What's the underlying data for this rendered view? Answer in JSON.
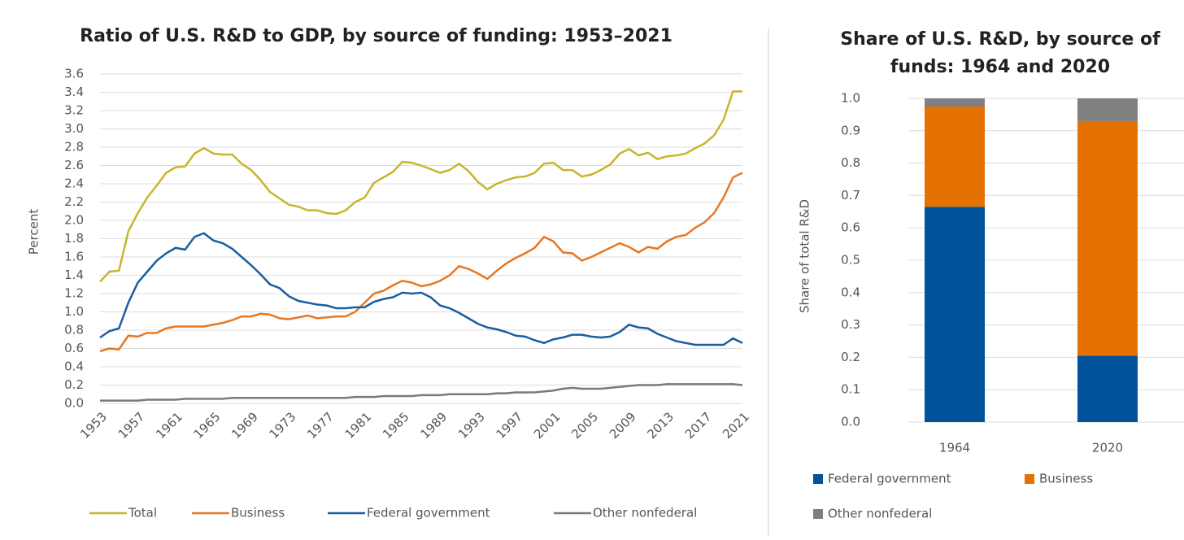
{
  "chart_data": [
    {
      "type": "line",
      "title": "Ratio of U.S. R&D to GDP, by source of funding: 1953–2021",
      "ylabel": "Percent",
      "x": [
        1953,
        1954,
        1955,
        1956,
        1957,
        1958,
        1959,
        1960,
        1961,
        1962,
        1963,
        1964,
        1965,
        1966,
        1967,
        1968,
        1969,
        1970,
        1971,
        1972,
        1973,
        1974,
        1975,
        1976,
        1977,
        1978,
        1979,
        1980,
        1981,
        1982,
        1983,
        1984,
        1985,
        1986,
        1987,
        1988,
        1989,
        1990,
        1991,
        1992,
        1993,
        1994,
        1995,
        1996,
        1997,
        1998,
        1999,
        2000,
        2001,
        2002,
        2003,
        2004,
        2005,
        2006,
        2007,
        2008,
        2009,
        2010,
        2011,
        2012,
        2013,
        2014,
        2015,
        2016,
        2017,
        2018,
        2019,
        2020,
        2021
      ],
      "xlim": [
        1953,
        2021
      ],
      "xticks": [
        1953,
        1957,
        1961,
        1965,
        1969,
        1973,
        1977,
        1981,
        1985,
        1989,
        1993,
        1997,
        2001,
        2005,
        2009,
        2013,
        2017,
        2021
      ],
      "ylim": [
        0,
        3.6
      ],
      "yticks": [
        {
          "value": 0,
          "label": "0.0"
        },
        0.2,
        0.4,
        0.6,
        0.8,
        {
          "value": 1,
          "label": "1.0"
        },
        1.2,
        1.4,
        1.6,
        1.8,
        {
          "value": 2,
          "label": "2.0"
        },
        2.2,
        2.4,
        2.6,
        2.8,
        {
          "value": 3,
          "label": "3.0"
        },
        3.2,
        3.4,
        3.6
      ],
      "grid": true,
      "series": [
        {
          "name": "Total",
          "color": "#c9b52c",
          "values": [
            1.33,
            1.44,
            1.45,
            1.88,
            2.08,
            2.25,
            2.38,
            2.52,
            2.58,
            2.59,
            2.73,
            2.79,
            2.73,
            2.72,
            2.72,
            2.62,
            2.55,
            2.44,
            2.31,
            2.24,
            2.17,
            2.15,
            2.11,
            2.11,
            2.08,
            2.07,
            2.11,
            2.2,
            2.25,
            2.41,
            2.47,
            2.53,
            2.64,
            2.63,
            2.6,
            2.56,
            2.52,
            2.55,
            2.62,
            2.54,
            2.42,
            2.34,
            2.4,
            2.44,
            2.47,
            2.48,
            2.52,
            2.62,
            2.63,
            2.55,
            2.55,
            2.48,
            2.5,
            2.55,
            2.61,
            2.73,
            2.78,
            2.71,
            2.74,
            2.67,
            2.7,
            2.71,
            2.73,
            2.79,
            2.84,
            2.93,
            3.1,
            3.41,
            3.41
          ]
        },
        {
          "name": "Business",
          "color": "#e87722",
          "values": [
            0.57,
            0.6,
            0.59,
            0.74,
            0.73,
            0.77,
            0.77,
            0.82,
            0.84,
            0.84,
            0.84,
            0.84,
            0.86,
            0.88,
            0.91,
            0.95,
            0.95,
            0.98,
            0.97,
            0.93,
            0.92,
            0.94,
            0.96,
            0.93,
            0.94,
            0.95,
            0.95,
            1.0,
            1.1,
            1.2,
            1.23,
            1.29,
            1.34,
            1.32,
            1.28,
            1.3,
            1.34,
            1.4,
            1.5,
            1.47,
            1.42,
            1.36,
            1.45,
            1.53,
            1.59,
            1.64,
            1.7,
            1.82,
            1.77,
            1.65,
            1.64,
            1.56,
            1.6,
            1.65,
            1.7,
            1.75,
            1.71,
            1.65,
            1.71,
            1.69,
            1.77,
            1.82,
            1.84,
            1.92,
            1.98,
            2.08,
            2.25,
            2.47,
            2.52
          ]
        },
        {
          "name": "Federal government",
          "color": "#1b5e9e",
          "values": [
            0.72,
            0.79,
            0.82,
            1.1,
            1.32,
            1.44,
            1.56,
            1.64,
            1.7,
            1.68,
            1.82,
            1.86,
            1.78,
            1.75,
            1.69,
            1.6,
            1.51,
            1.41,
            1.3,
            1.26,
            1.17,
            1.12,
            1.1,
            1.08,
            1.07,
            1.04,
            1.04,
            1.05,
            1.05,
            1.11,
            1.14,
            1.16,
            1.21,
            1.2,
            1.21,
            1.16,
            1.07,
            1.04,
            0.99,
            0.93,
            0.87,
            0.83,
            0.81,
            0.78,
            0.74,
            0.73,
            0.69,
            0.66,
            0.7,
            0.72,
            0.75,
            0.75,
            0.73,
            0.72,
            0.73,
            0.78,
            0.86,
            0.83,
            0.82,
            0.76,
            0.72,
            0.68,
            0.66,
            0.64,
            0.64,
            0.64,
            0.64,
            0.71,
            0.66
          ]
        },
        {
          "name": "Other nonfederal",
          "color": "#7a7a7a",
          "values": [
            0.03,
            0.03,
            0.03,
            0.03,
            0.03,
            0.04,
            0.04,
            0.04,
            0.04,
            0.05,
            0.05,
            0.05,
            0.05,
            0.05,
            0.06,
            0.06,
            0.06,
            0.06,
            0.06,
            0.06,
            0.06,
            0.06,
            0.06,
            0.06,
            0.06,
            0.06,
            0.06,
            0.07,
            0.07,
            0.07,
            0.08,
            0.08,
            0.08,
            0.08,
            0.09,
            0.09,
            0.09,
            0.1,
            0.1,
            0.1,
            0.1,
            0.1,
            0.11,
            0.11,
            0.12,
            0.12,
            0.12,
            0.13,
            0.14,
            0.16,
            0.17,
            0.16,
            0.16,
            0.16,
            0.17,
            0.18,
            0.19,
            0.2,
            0.2,
            0.2,
            0.21,
            0.21,
            0.21,
            0.21,
            0.21,
            0.21,
            0.21,
            0.21,
            0.2
          ]
        }
      ]
    },
    {
      "type": "stacked_bar",
      "title": "Share of U.S. R&D, by source of funds: 1964 and 2020",
      "ylabel": "Share of total R&D",
      "categories": [
        "1964",
        "2020"
      ],
      "ylim": [
        0,
        1
      ],
      "yticks": [
        {
          "value": 0,
          "label": "0.0"
        },
        0.1,
        0.2,
        0.3,
        0.4,
        0.5,
        0.6,
        0.7,
        0.8,
        0.9,
        {
          "value": 1,
          "label": "1.0"
        }
      ],
      "grid": true,
      "series": [
        {
          "name": "Federal government",
          "color": "#00529b",
          "values": [
            0.665,
            0.205
          ]
        },
        {
          "name": "Business",
          "color": "#e57200",
          "values": [
            0.31,
            0.725
          ]
        },
        {
          "name": "Other nonfederal",
          "color": "#7f7f7f",
          "values": [
            0.025,
            0.07
          ]
        }
      ]
    }
  ]
}
